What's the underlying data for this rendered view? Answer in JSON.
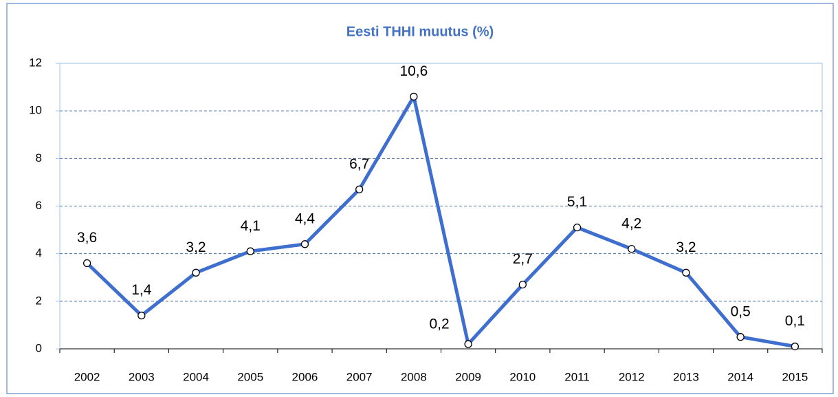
{
  "chart_data": {
    "type": "line",
    "title": "Eesti THHI muutus (%)",
    "categories": [
      "2002",
      "2003",
      "2004",
      "2005",
      "2006",
      "2007",
      "2008",
      "2009",
      "2010",
      "2011",
      "2012",
      "2013",
      "2014",
      "2015"
    ],
    "values": [
      3.6,
      1.4,
      3.2,
      4.1,
      4.4,
      6.7,
      10.6,
      0.2,
      2.7,
      5.1,
      4.2,
      3.2,
      0.5,
      0.1
    ],
    "value_labels": [
      "3,6",
      "1,4",
      "3,2",
      "4,1",
      "4,4",
      "6,7",
      "10,6",
      "0,2",
      "2,7",
      "5,1",
      "4,2",
      "3,2",
      "0,5",
      "0,1"
    ],
    "color": "#3f6fce",
    "ylim": [
      0,
      12
    ],
    "yticks": [
      0,
      2,
      4,
      6,
      8,
      10,
      12
    ],
    "grid": true
  }
}
